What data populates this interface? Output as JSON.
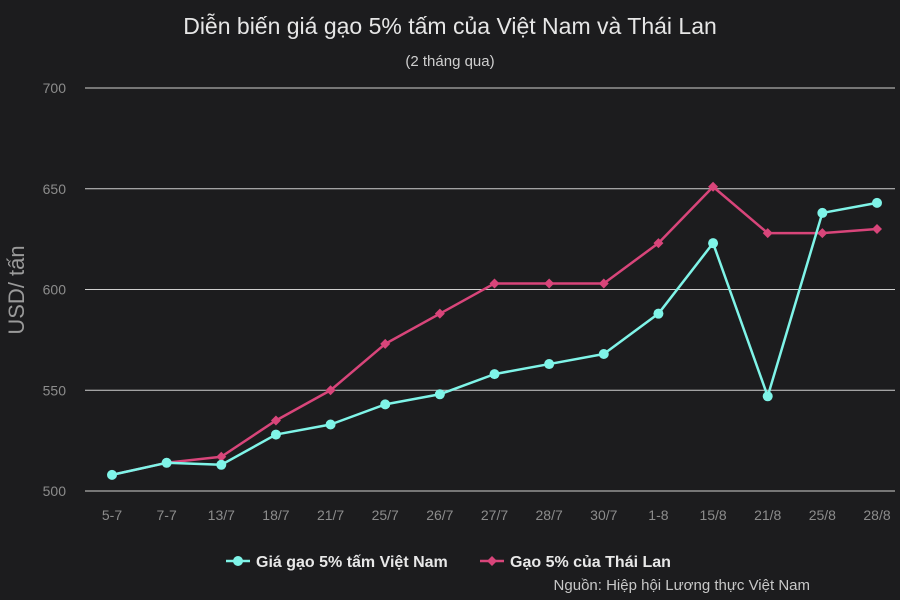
{
  "chart_data": {
    "type": "line",
    "title": "Diễn biến giá gạo 5% tấm của Việt Nam và Thái Lan",
    "subtitle": "(2 tháng qua)",
    "ylabel": "USD/ tấn",
    "xlabel": "",
    "ylim": [
      500,
      700
    ],
    "yticks": [
      500,
      550,
      600,
      650,
      700
    ],
    "grid": true,
    "legend_position": "bottom",
    "categories": [
      "5-7",
      "7-7",
      "13/7",
      "18/7",
      "21/7",
      "25/7",
      "26/7",
      "27/7",
      "28/7",
      "30/7",
      "1-8",
      "15/8",
      "21/8",
      "25/8",
      "28/8"
    ],
    "series": [
      {
        "name": "Giá gạo 5% tấm Việt Nam",
        "color": "#7ff4e8",
        "marker": "circle",
        "values": [
          508,
          514,
          513,
          528,
          533,
          543,
          548,
          558,
          563,
          568,
          588,
          623,
          547,
          638,
          643
        ]
      },
      {
        "name": "Gạo 5% của Thái Lan",
        "color": "#d8457a",
        "marker": "diamond",
        "values": [
          508,
          514,
          517,
          535,
          550,
          573,
          588,
          603,
          603,
          603,
          623,
          651,
          628,
          628,
          630
        ]
      }
    ],
    "source": "Nguồn: Hiệp hội Lương thực Việt Nam"
  }
}
